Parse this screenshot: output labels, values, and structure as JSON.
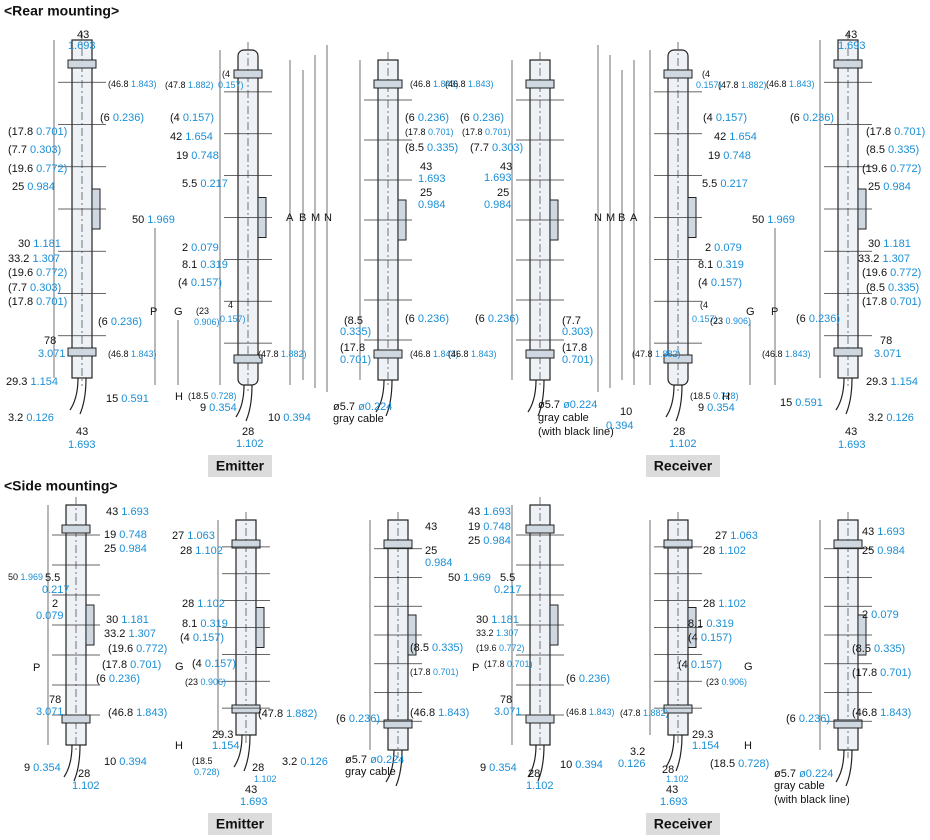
{
  "rear_mounting": {
    "title": "<Rear mounting>",
    "emitter": "Emitter",
    "receiver": "Receiver",
    "labels": [
      [
        "43"
      ],
      [
        "1.693"
      ],
      [
        "(46.8",
        "1.843)"
      ],
      [
        "(6",
        "0.236)"
      ],
      [
        "(17.8",
        "0.701)"
      ],
      [
        "(7.7",
        "0.303)"
      ],
      [
        "(19.6",
        "0.772)"
      ],
      [
        "25",
        "0.984"
      ],
      [
        "30",
        "1.181"
      ],
      [
        "33.2",
        "1.307"
      ],
      [
        "(19.6",
        "0.772)"
      ],
      [
        "(7.7",
        "0.303)"
      ],
      [
        "(17.8",
        "0.701)"
      ],
      [
        "(6",
        "0.236)"
      ],
      [
        "78"
      ],
      [
        "3.071"
      ],
      [
        "(46.8",
        "1.843)"
      ],
      [
        "29.3",
        "1.154"
      ],
      [
        "15",
        "0.591"
      ],
      [
        "3.2",
        "0.126"
      ],
      [
        "43"
      ],
      [
        "1.693"
      ],
      [
        "(47.8",
        "1.882)"
      ],
      [
        "(4"
      ],
      [
        "0.157)"
      ],
      [
        "(4",
        "0.157)"
      ],
      [
        "42",
        "1.654"
      ],
      [
        "19",
        "0.748"
      ],
      [
        "5.5",
        "0.217"
      ],
      [
        "50",
        "1.969"
      ],
      [
        "A"
      ],
      [
        "B"
      ],
      [
        "M"
      ],
      [
        "N"
      ],
      [
        "2",
        "0.079"
      ],
      [
        "8.1",
        "0.319"
      ],
      [
        "(4",
        "0.157)"
      ],
      [
        "P"
      ],
      [
        "G"
      ],
      [
        "(23"
      ],
      [
        "0.906)"
      ],
      [
        "4"
      ],
      [
        "0.157)"
      ],
      [
        "(47.8",
        "1.882)"
      ],
      [
        "H"
      ],
      [
        "(18.5",
        "0.728)"
      ],
      [
        "9",
        "0.354"
      ],
      [
        "10",
        "0.394"
      ],
      [
        "28"
      ],
      [
        "1.102"
      ],
      [
        "(46.8",
        "1.843)"
      ],
      [
        "(6",
        "0.236)"
      ],
      [
        "(17.8",
        "0.701)"
      ],
      [
        "(8.5",
        "0.335)"
      ],
      [
        "43"
      ],
      [
        "1.693"
      ],
      [
        "25"
      ],
      [
        "0.984"
      ],
      [
        "(8.5"
      ],
      [
        "0.335)"
      ],
      [
        "(6",
        "0.236)"
      ],
      [
        "(17.8"
      ],
      [
        "0.701)"
      ],
      [
        "(46.8",
        "1.843)"
      ],
      [
        "ø5.7",
        "ø0.224"
      ],
      [
        "gray cable"
      ],
      [
        "(46.8",
        "1.843)"
      ],
      [
        "(6",
        "0.236)"
      ],
      [
        "(17.8",
        "0.701)"
      ],
      [
        "(7.7",
        "0.303)"
      ],
      [
        "43"
      ],
      [
        "1.693"
      ],
      [
        "25"
      ],
      [
        "0.984"
      ],
      [
        "(6",
        "0.236)"
      ],
      [
        "(7.7"
      ],
      [
        "0.303)"
      ],
      [
        "(17.8"
      ],
      [
        "0.701)"
      ],
      [
        "(46.8",
        "1.843)"
      ],
      [
        "ø5.7",
        "ø0.224"
      ],
      [
        "gray cable"
      ],
      [
        "(with black line)"
      ],
      [
        "N"
      ],
      [
        "M"
      ],
      [
        "B"
      ],
      [
        "A"
      ],
      [
        "(4"
      ],
      [
        "0.157)"
      ],
      [
        "(47.8",
        "1.882)"
      ],
      [
        "(4",
        "0.157)"
      ],
      [
        "42",
        "1.654"
      ],
      [
        "19",
        "0.748"
      ],
      [
        "5.5",
        "0.217"
      ],
      [
        "50",
        "1.969"
      ],
      [
        "2",
        "0.079"
      ],
      [
        "8.1",
        "0.319"
      ],
      [
        "(4",
        "0.157)"
      ],
      [
        "(4"
      ],
      [
        "0.157)"
      ],
      [
        "(23",
        "0.906)"
      ],
      [
        "G"
      ],
      [
        "P"
      ],
      [
        "(47.8",
        "1.882)"
      ],
      [
        "(18.5",
        "0.728)"
      ],
      [
        "H"
      ],
      [
        "10"
      ],
      [
        "0.394"
      ],
      [
        "9",
        "0.354"
      ],
      [
        "28"
      ],
      [
        "1.102"
      ],
      [
        "43"
      ],
      [
        "1.693"
      ],
      [
        "(46.8",
        "1.843)"
      ],
      [
        "(6",
        "0.236)"
      ],
      [
        "(17.8",
        "0.701)"
      ],
      [
        "(8.5",
        "0.335)"
      ],
      [
        "(19.6",
        "0.772)"
      ],
      [
        "25",
        "0.984"
      ],
      [
        "30",
        "1.181"
      ],
      [
        "33.2",
        "1.307"
      ],
      [
        "(19.6",
        "0.772)"
      ],
      [
        "(8.5",
        "0.335)"
      ],
      [
        "(17.8",
        "0.701)"
      ],
      [
        "(6",
        "0.236)"
      ],
      [
        "78"
      ],
      [
        "3.071"
      ],
      [
        "(46.8",
        "1.843)"
      ],
      [
        "29.3",
        "1.154"
      ],
      [
        "15",
        "0.591"
      ],
      [
        "3.2",
        "0.126"
      ],
      [
        "43"
      ],
      [
        "1.693"
      ]
    ]
  },
  "side_mounting": {
    "title": "<Side mounting>",
    "emitter": "Emitter",
    "receiver": "Receiver",
    "labels": [
      [
        "43",
        "1.693"
      ],
      [
        "19",
        "0.748"
      ],
      [
        "25",
        "0.984"
      ],
      [
        "50",
        "1.969"
      ],
      [
        "5.5"
      ],
      [
        "0.217"
      ],
      [
        "2"
      ],
      [
        "0.079"
      ],
      [
        "30",
        "1.181"
      ],
      [
        "33.2",
        "1.307"
      ],
      [
        "(19.6",
        "0.772)"
      ],
      [
        "P"
      ],
      [
        "(17.8",
        "0.701)"
      ],
      [
        "(6",
        "0.236)"
      ],
      [
        "78"
      ],
      [
        "3.071"
      ],
      [
        "(46.8",
        "1.843)"
      ],
      [
        "9",
        "0.354"
      ],
      [
        "28"
      ],
      [
        "1.102"
      ],
      [
        "10",
        "0.394"
      ],
      [
        "27",
        "1.063"
      ],
      [
        "28",
        "1.102"
      ],
      [
        "28",
        "1.102"
      ],
      [
        "8.1",
        "0.319"
      ],
      [
        "(4",
        "0.157)"
      ],
      [
        "G"
      ],
      [
        "(4",
        "0.157)"
      ],
      [
        "(23",
        "0.906)"
      ],
      [
        "(47.8",
        "1.882)"
      ],
      [
        "29.3"
      ],
      [
        "1.154"
      ],
      [
        "H"
      ],
      [
        "(18.5"
      ],
      [
        "0.728)"
      ],
      [
        "28"
      ],
      [
        "1.102"
      ],
      [
        "3.2",
        "0.126"
      ],
      [
        "43"
      ],
      [
        "1.693"
      ],
      [
        "43"
      ],
      [
        "25"
      ],
      [
        "0.984"
      ],
      [
        "(8.5",
        "0.335)"
      ],
      [
        "(17.8",
        "0.701)"
      ],
      [
        "(6",
        "0.236)"
      ],
      [
        "(46.8",
        "1.843)"
      ],
      [
        "ø5.7",
        "ø0.224"
      ],
      [
        "gray cable"
      ],
      [
        "43",
        "1.693"
      ],
      [
        "19",
        "0.748"
      ],
      [
        "25",
        "0.984"
      ],
      [
        "50",
        "1.969"
      ],
      [
        "5.5"
      ],
      [
        "0.217"
      ],
      [
        "30",
        "1.181"
      ],
      [
        "33.2",
        "1.307"
      ],
      [
        "(19.6",
        "0.772)"
      ],
      [
        "P"
      ],
      [
        "(17.8",
        "0.701)"
      ],
      [
        "(6",
        "0.236)"
      ],
      [
        "78"
      ],
      [
        "3.071"
      ],
      [
        "(46.8",
        "1.843)"
      ],
      [
        "9",
        "0.354"
      ],
      [
        "28"
      ],
      [
        "1.102"
      ],
      [
        "10",
        "0.394"
      ],
      [
        "27",
        "1.063"
      ],
      [
        "28",
        "1.102"
      ],
      [
        "28",
        "1.102"
      ],
      [
        "8.1",
        "0.319"
      ],
      [
        "(4",
        "0.157)"
      ],
      [
        "(4",
        "0.157)"
      ],
      [
        "G"
      ],
      [
        "(23",
        "0.906)"
      ],
      [
        "(47.8",
        "1.882)"
      ],
      [
        "3.2"
      ],
      [
        "0.126"
      ],
      [
        "29.3"
      ],
      [
        "1.154"
      ],
      [
        "H"
      ],
      [
        "28"
      ],
      [
        "1.102"
      ],
      [
        "(18.5",
        "0.728)"
      ],
      [
        "43"
      ],
      [
        "1.693"
      ],
      [
        "43",
        "1.693"
      ],
      [
        "25",
        "0.984"
      ],
      [
        "2",
        "0.079"
      ],
      [
        "(8.5",
        "0.335)"
      ],
      [
        "(17.8",
        "0.701)"
      ],
      [
        "(6",
        "0.236)"
      ],
      [
        "(46.8",
        "1.843)"
      ],
      [
        "ø5.7",
        "ø0.224"
      ],
      [
        "gray cable"
      ],
      [
        "(with black line)"
      ]
    ]
  }
}
